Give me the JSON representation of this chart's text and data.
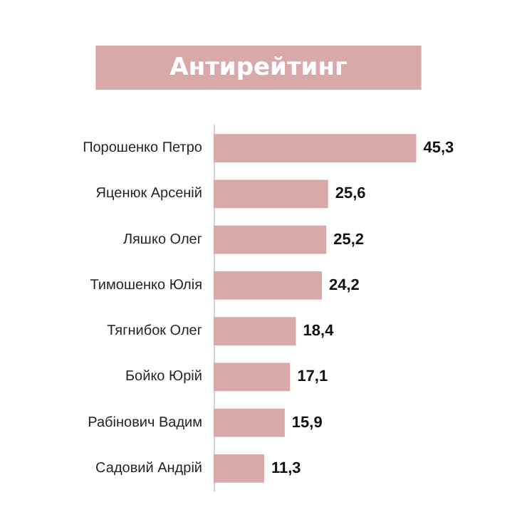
{
  "chart_data": {
    "type": "bar",
    "orientation": "horizontal",
    "title": "Антирейтинг",
    "categories": [
      "Порошенко Петро",
      "Яценюк Арсеній",
      "Ляшко Олег",
      "Тимошенко Юлія",
      "Тягнибок Олег",
      "Бойко Юрій",
      "Рабінович Вадим",
      "Садовий Андрій"
    ],
    "values": [
      45.3,
      25.6,
      25.2,
      24.2,
      18.4,
      17.1,
      15.9,
      11.3
    ],
    "value_labels": [
      "45,3",
      "25,6",
      "25,2",
      "24,2",
      "18,4",
      "17,1",
      "15,9",
      "11,3"
    ],
    "color": "#d9a9a9"
  }
}
